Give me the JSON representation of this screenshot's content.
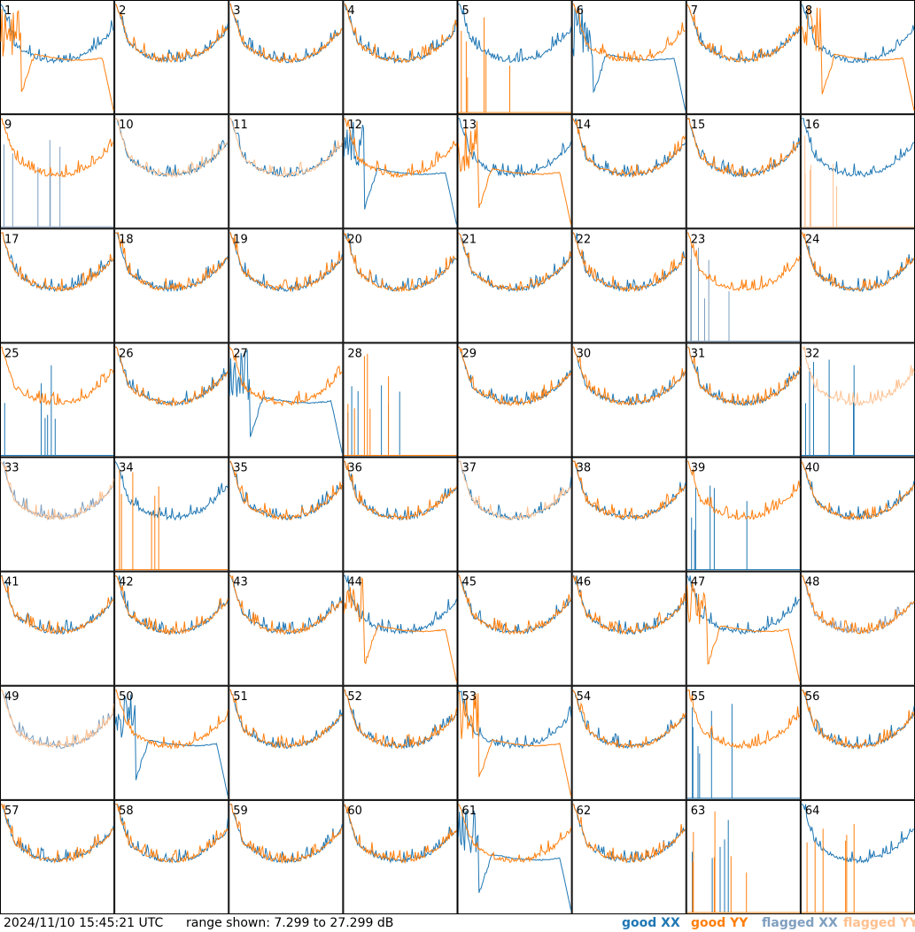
{
  "footer": {
    "timestamp": "2024/11/10 15:45:21 UTC",
    "range": "range shown: 7.299 to 27.299 dB"
  },
  "legend": [
    {
      "label": "good XX",
      "color": "#1f77b4"
    },
    {
      "label": "good YY",
      "color": "#ff7f0e"
    },
    {
      "label": "flagged XX",
      "color": "#7f9fbf"
    },
    {
      "label": "flagged YY",
      "color": "#ffc08f"
    }
  ],
  "chart_data": {
    "type": "line",
    "panel_layout": {
      "columns": 8,
      "rows": 8
    },
    "ylim": [
      7.299,
      27.299
    ],
    "panels": [
      {
        "label": "1",
        "xx": "g",
        "yy": "g",
        "xxShape": "n",
        "yyShape": "r"
      },
      {
        "label": "2",
        "xx": "g",
        "yy": "g",
        "xxShape": "n",
        "yyShape": "n"
      },
      {
        "label": "3",
        "xx": "g",
        "yy": "g",
        "xxShape": "n",
        "yyShape": "n"
      },
      {
        "label": "4",
        "xx": "g",
        "yy": "g",
        "xxShape": "n",
        "yyShape": "n"
      },
      {
        "label": "5",
        "xx": "g",
        "yy": "g",
        "xxShape": "n",
        "yyShape": "d"
      },
      {
        "label": "6",
        "xx": "g",
        "yy": "g",
        "xxShape": "r",
        "yyShape": "n"
      },
      {
        "label": "7",
        "xx": "g",
        "yy": "g",
        "xxShape": "n",
        "yyShape": "n"
      },
      {
        "label": "8",
        "xx": "g",
        "yy": "g",
        "xxShape": "n",
        "yyShape": "r"
      },
      {
        "label": "9",
        "xx": "f",
        "yy": "g",
        "xxShape": "d",
        "yyShape": "n"
      },
      {
        "label": "10",
        "xx": "g",
        "yy": "f",
        "xxShape": "n",
        "yyShape": "n"
      },
      {
        "label": "11",
        "xx": "g",
        "yy": "f",
        "xxShape": "n",
        "yyShape": "n"
      },
      {
        "label": "12",
        "xx": "g",
        "yy": "g",
        "xxShape": "r",
        "yyShape": "n"
      },
      {
        "label": "13",
        "xx": "g",
        "yy": "g",
        "xxShape": "n",
        "yyShape": "r"
      },
      {
        "label": "14",
        "xx": "g",
        "yy": "g",
        "xxShape": "n",
        "yyShape": "n"
      },
      {
        "label": "15",
        "xx": "g",
        "yy": "g",
        "xxShape": "n",
        "yyShape": "n"
      },
      {
        "label": "16",
        "xx": "g",
        "yy": "f",
        "xxShape": "n",
        "yyShape": "d"
      },
      {
        "label": "17",
        "xx": "g",
        "yy": "g",
        "xxShape": "n",
        "yyShape": "n"
      },
      {
        "label": "18",
        "xx": "g",
        "yy": "g",
        "xxShape": "n",
        "yyShape": "n"
      },
      {
        "label": "19",
        "xx": "g",
        "yy": "g",
        "xxShape": "n",
        "yyShape": "n"
      },
      {
        "label": "20",
        "xx": "g",
        "yy": "g",
        "xxShape": "n",
        "yyShape": "n"
      },
      {
        "label": "21",
        "xx": "g",
        "yy": "g",
        "xxShape": "n",
        "yyShape": "n"
      },
      {
        "label": "22",
        "xx": "g",
        "yy": "g",
        "xxShape": "n",
        "yyShape": "n"
      },
      {
        "label": "23",
        "xx": "f",
        "yy": "g",
        "xxShape": "d",
        "yyShape": "n"
      },
      {
        "label": "24",
        "xx": "g",
        "yy": "g",
        "xxShape": "n",
        "yyShape": "n"
      },
      {
        "label": "25",
        "xx": "g",
        "yy": "g",
        "xxShape": "d",
        "yyShape": "n"
      },
      {
        "label": "26",
        "xx": "g",
        "yy": "g",
        "xxShape": "n",
        "yyShape": "n"
      },
      {
        "label": "27",
        "xx": "g",
        "yy": "g",
        "xxShape": "r",
        "yyShape": "n"
      },
      {
        "label": "28",
        "xx": "g",
        "yy": "g",
        "xxShape": "d",
        "yyShape": "d"
      },
      {
        "label": "29",
        "xx": "g",
        "yy": "g",
        "xxShape": "n",
        "yyShape": "n"
      },
      {
        "label": "30",
        "xx": "g",
        "yy": "g",
        "xxShape": "n",
        "yyShape": "n"
      },
      {
        "label": "31",
        "xx": "g",
        "yy": "g",
        "xxShape": "n",
        "yyShape": "n"
      },
      {
        "label": "32",
        "xx": "g",
        "yy": "f",
        "xxShape": "d",
        "yyShape": "n"
      },
      {
        "label": "33",
        "xx": "f",
        "yy": "f",
        "xxShape": "n",
        "yyShape": "n"
      },
      {
        "label": "34",
        "xx": "g",
        "yy": "g",
        "xxShape": "n",
        "yyShape": "d"
      },
      {
        "label": "35",
        "xx": "g",
        "yy": "g",
        "xxShape": "n",
        "yyShape": "n"
      },
      {
        "label": "36",
        "xx": "g",
        "yy": "g",
        "xxShape": "n",
        "yyShape": "n"
      },
      {
        "label": "37",
        "xx": "g",
        "yy": "f",
        "xxShape": "n",
        "yyShape": "n"
      },
      {
        "label": "38",
        "xx": "g",
        "yy": "g",
        "xxShape": "n",
        "yyShape": "n"
      },
      {
        "label": "39",
        "xx": "g",
        "yy": "g",
        "xxShape": "d",
        "yyShape": "n"
      },
      {
        "label": "40",
        "xx": "g",
        "yy": "g",
        "xxShape": "n",
        "yyShape": "n"
      },
      {
        "label": "41",
        "xx": "g",
        "yy": "g",
        "xxShape": "n",
        "yyShape": "n"
      },
      {
        "label": "42",
        "xx": "g",
        "yy": "g",
        "xxShape": "n",
        "yyShape": "n"
      },
      {
        "label": "43",
        "xx": "g",
        "yy": "g",
        "xxShape": "n",
        "yyShape": "n"
      },
      {
        "label": "44",
        "xx": "g",
        "yy": "g",
        "xxShape": "n",
        "yyShape": "r"
      },
      {
        "label": "45",
        "xx": "g",
        "yy": "g",
        "xxShape": "n",
        "yyShape": "n"
      },
      {
        "label": "46",
        "xx": "g",
        "yy": "g",
        "xxShape": "n",
        "yyShape": "n"
      },
      {
        "label": "47",
        "xx": "g",
        "yy": "g",
        "xxShape": "n",
        "yyShape": "r"
      },
      {
        "label": "48",
        "xx": "f",
        "yy": "g",
        "xxShape": "n",
        "yyShape": "n"
      },
      {
        "label": "49",
        "xx": "f",
        "yy": "f",
        "xxShape": "n",
        "yyShape": "n"
      },
      {
        "label": "50",
        "xx": "g",
        "yy": "g",
        "xxShape": "r",
        "yyShape": "n"
      },
      {
        "label": "51",
        "xx": "g",
        "yy": "g",
        "xxShape": "n",
        "yyShape": "n"
      },
      {
        "label": "52",
        "xx": "g",
        "yy": "g",
        "xxShape": "n",
        "yyShape": "n"
      },
      {
        "label": "53",
        "xx": "g",
        "yy": "g",
        "xxShape": "n",
        "yyShape": "r"
      },
      {
        "label": "54",
        "xx": "g",
        "yy": "g",
        "xxShape": "n",
        "yyShape": "n"
      },
      {
        "label": "55",
        "xx": "g",
        "yy": "g",
        "xxShape": "d",
        "yyShape": "n"
      },
      {
        "label": "56",
        "xx": "g",
        "yy": "g",
        "xxShape": "n",
        "yyShape": "n"
      },
      {
        "label": "57",
        "xx": "g",
        "yy": "g",
        "xxShape": "n",
        "yyShape": "n"
      },
      {
        "label": "58",
        "xx": "g",
        "yy": "g",
        "xxShape": "n",
        "yyShape": "n"
      },
      {
        "label": "59",
        "xx": "g",
        "yy": "g",
        "xxShape": "n",
        "yyShape": "n"
      },
      {
        "label": "60",
        "xx": "g",
        "yy": "g",
        "xxShape": "n",
        "yyShape": "n"
      },
      {
        "label": "61",
        "xx": "g",
        "yy": "g",
        "xxShape": "r",
        "yyShape": "n"
      },
      {
        "label": "62",
        "xx": "g",
        "yy": "g",
        "xxShape": "n",
        "yyShape": "n"
      },
      {
        "label": "63",
        "xx": "g",
        "yy": "g",
        "xxShape": "d",
        "yyShape": "d"
      },
      {
        "label": "64",
        "xx": "g",
        "yy": "g",
        "xxShape": "n",
        "yyShape": "d"
      }
    ]
  }
}
